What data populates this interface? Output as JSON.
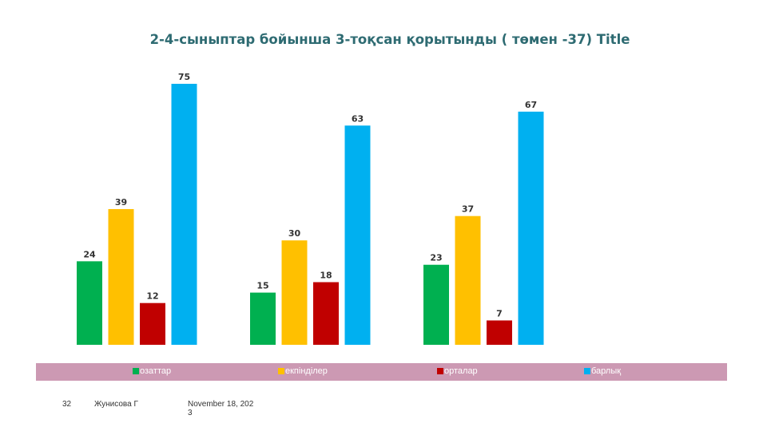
{
  "chart_data": {
    "type": "bar",
    "title": "2-4-сыныптар бойынша  3-тоқсан қорытынды ( төмен -37) Title",
    "categories": [
      "",
      "",
      ""
    ],
    "series": [
      {
        "name": "озаттар",
        "color": "#00b050",
        "values": [
          24,
          15,
          23
        ]
      },
      {
        "name": "екпінділер",
        "color": "#ffc000",
        "values": [
          39,
          30,
          37
        ]
      },
      {
        "name": "орталар",
        "color": "#c00000",
        "values": [
          12,
          18,
          7
        ]
      },
      {
        "name": "барлық",
        "color": "#00b0f0",
        "values": [
          75,
          63,
          67
        ]
      }
    ],
    "ylim": [
      0,
      75
    ],
    "grid": false,
    "legend_placement": "bottom",
    "data_labels": true
  },
  "footer": {
    "slide_number": "32",
    "author": "Жунисова Г",
    "date_line1": "November 18, 202",
    "date_line2": "3"
  }
}
